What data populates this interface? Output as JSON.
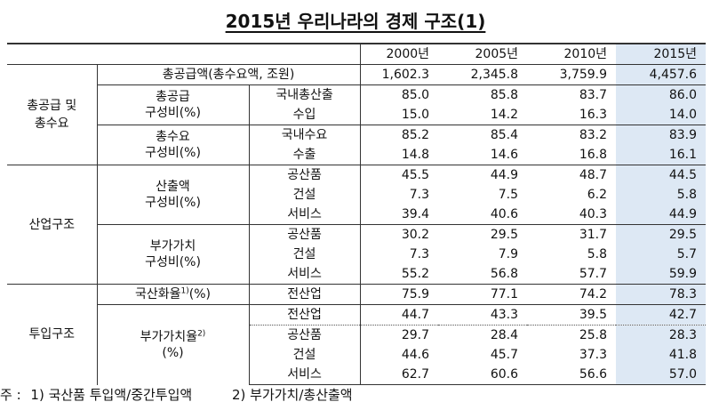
{
  "title": "2015년 우리나라의 경제 구조(1)",
  "years": [
    "2000년",
    "2005년",
    "2010년",
    "2015년"
  ],
  "total_supply": {
    "label": "총공급액(총수요액, 조원)",
    "values": [
      "1,602.3",
      "2,345.8",
      "3,759.9",
      "4,457.6"
    ]
  },
  "sec1": {
    "label_line1": "총공급 및",
    "label_line2": "총수요",
    "supply": {
      "label_line1": "총공급",
      "label_line2": "구성비(%)",
      "rows": [
        {
          "item": "국내총산출",
          "values": [
            "85.0",
            "85.8",
            "83.7",
            "86.0"
          ]
        },
        {
          "item": "수입",
          "values": [
            "15.0",
            "14.2",
            "16.3",
            "14.0"
          ]
        }
      ]
    },
    "demand": {
      "label_line1": "총수요",
      "label_line2": "구성비(%)",
      "rows": [
        {
          "item": "국내수요",
          "values": [
            "85.2",
            "85.4",
            "83.2",
            "83.9"
          ]
        },
        {
          "item": "수출",
          "values": [
            "14.8",
            "14.6",
            "16.8",
            "16.1"
          ]
        }
      ]
    }
  },
  "sec2": {
    "label": "산업구조",
    "output": {
      "label_line1": "산출액",
      "label_line2": "구성비(%)",
      "rows": [
        {
          "item": "공산품",
          "values": [
            "45.5",
            "44.9",
            "48.7",
            "44.5"
          ]
        },
        {
          "item": "건설",
          "values": [
            "7.3",
            "7.5",
            "6.2",
            "5.8"
          ]
        },
        {
          "item": "서비스",
          "values": [
            "39.4",
            "40.6",
            "40.3",
            "44.9"
          ]
        }
      ]
    },
    "value_added": {
      "label_line1": "부가가치",
      "label_line2": "구성비(%)",
      "rows": [
        {
          "item": "공산품",
          "values": [
            "30.2",
            "29.5",
            "31.7",
            "29.5"
          ]
        },
        {
          "item": "건설",
          "values": [
            "7.3",
            "7.9",
            "5.8",
            "5.7"
          ]
        },
        {
          "item": "서비스",
          "values": [
            "55.2",
            "56.8",
            "57.7",
            "59.9"
          ]
        }
      ]
    }
  },
  "sec3": {
    "label": "투입구조",
    "domestic": {
      "label": "국산화율",
      "sup": "1)",
      "unit": "(%)",
      "item": "전산업",
      "values": [
        "75.9",
        "77.1",
        "74.2",
        "78.3"
      ]
    },
    "va_rate": {
      "label": "부가가치율",
      "sup": "2)",
      "unit": "(%)",
      "rows": [
        {
          "item": "전산업",
          "values": [
            "44.7",
            "43.3",
            "39.5",
            "42.7"
          ]
        },
        {
          "item": "공산품",
          "values": [
            "29.7",
            "28.4",
            "25.8",
            "28.3"
          ]
        },
        {
          "item": "건설",
          "values": [
            "44.6",
            "45.7",
            "37.3",
            "41.8"
          ]
        },
        {
          "item": "서비스",
          "values": [
            "62.7",
            "60.6",
            "56.6",
            "57.0"
          ]
        }
      ]
    }
  },
  "footnote": {
    "prefix": "주 :",
    "note1": "1)  국산품 투입액/중간투입액",
    "note2": "2)  부가가치/총산출액"
  }
}
